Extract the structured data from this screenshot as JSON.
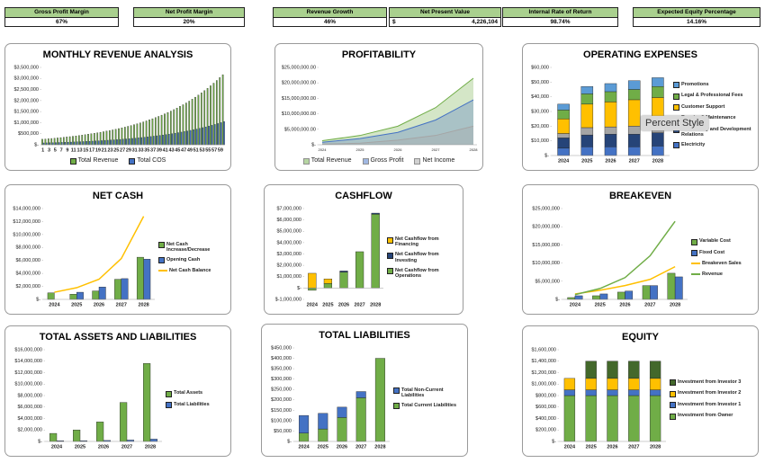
{
  "tooltip": "Percent Style",
  "kpis": [
    {
      "label": "Gross Profit Margin",
      "value": "67%"
    },
    {
      "label": "Net Profit Margin",
      "value": "20%"
    },
    {
      "label": "Revenue Growth",
      "value": "46%"
    },
    {
      "label": "Net Present Value",
      "currency": "$",
      "value": "4,226,104"
    },
    {
      "label": "Internal Rate of Return",
      "value": "98.74%"
    },
    {
      "label": "Expected Equity Percentage",
      "value": "14.16%"
    }
  ],
  "chart_data": [
    {
      "type": "bar",
      "title": "MONTHLY REVENUE ANALYSIS",
      "legend": "bottom",
      "categories": [
        1,
        null,
        3,
        null,
        5,
        null,
        7,
        null,
        9,
        null,
        11,
        null,
        13,
        null,
        15,
        null,
        17,
        null,
        19,
        null,
        21,
        null,
        23,
        null,
        25,
        null,
        27,
        null,
        29,
        null,
        31,
        null,
        33,
        null,
        35,
        null,
        37,
        null,
        39,
        null,
        41,
        null,
        43,
        null,
        45,
        null,
        47,
        null,
        49,
        null,
        51,
        null,
        53,
        null,
        55,
        null,
        57,
        null,
        59,
        null
      ],
      "series": [
        {
          "name": "Total Revenue",
          "color": "#70ad47",
          "values": [
            250000,
            261000,
            272000,
            284000,
            297000,
            310000,
            324000,
            338000,
            353000,
            368000,
            384000,
            401000,
            419000,
            437000,
            457000,
            477000,
            498000,
            520000,
            542000,
            566000,
            591000,
            617000,
            644000,
            673000,
            702000,
            733000,
            766000,
            799000,
            835000,
            871000,
            910000,
            950000,
            991000,
            1035000,
            1081000,
            1128000,
            1178000,
            1230000,
            1284000,
            1340000,
            1399000,
            1461000,
            1525000,
            1592000,
            1663000,
            1736000,
            1812000,
            1892000,
            1975000,
            2062000,
            2153000,
            2248000,
            2347000,
            2450000,
            2558000,
            2670000,
            2788000,
            2911000,
            3039000,
            3172000
          ]
        },
        {
          "name": "Total COS",
          "color": "#4472c4",
          "values": [
            83000,
            86000,
            90000,
            94000,
            98000,
            102000,
            107000,
            112000,
            116000,
            121000,
            127000,
            132000,
            138000,
            144000,
            151000,
            157000,
            164000,
            172000,
            179000,
            187000,
            195000,
            204000,
            213000,
            222000,
            232000,
            242000,
            253000,
            264000,
            276000,
            288000,
            300000,
            314000,
            327000,
            342000,
            357000,
            372000,
            389000,
            406000,
            424000,
            442000,
            462000,
            482000,
            503000,
            525000,
            548000,
            573000,
            598000,
            624000,
            652000,
            680000,
            710000,
            742000,
            775000,
            809000,
            844000,
            881000,
            920000,
            961000,
            1003000,
            1047000
          ]
        }
      ],
      "ylim": [
        0,
        3500000
      ],
      "yticks": [
        {
          "value": 0,
          "label": "$-"
        },
        {
          "value": 500000,
          "label": "$500,000"
        },
        {
          "value": 1000000,
          "label": "$1,000,000"
        },
        {
          "value": 1500000,
          "label": "$1,500,000"
        },
        {
          "value": 2000000,
          "label": "$2,000,000"
        },
        {
          "value": 2500000,
          "label": "$2,500,000"
        },
        {
          "value": 3000000,
          "label": "$3,000,000"
        },
        {
          "value": 3500000,
          "label": "$3,500,000"
        }
      ]
    },
    {
      "type": "area",
      "title": "PROFITABILITY",
      "legend": "bottom",
      "categories": [
        "2024",
        "2025",
        "2026",
        "2027",
        "2028"
      ],
      "series": [
        {
          "name": "Total Revenue",
          "color": "#70ad47",
          "values": [
            1300000,
            3000000,
            6000000,
            12000000,
            21500000
          ]
        },
        {
          "name": "Gross Profit",
          "color": "#4472c4",
          "values": [
            800000,
            2000000,
            4000000,
            8000000,
            14500000
          ]
        },
        {
          "name": "Net Income",
          "color": "#a5a5a5",
          "values": [
            200000,
            500000,
            1500000,
            3000000,
            6000000
          ]
        }
      ],
      "ylim": [
        0,
        25000000
      ],
      "yticks": [
        {
          "value": 0,
          "label": "$-"
        },
        {
          "value": 5000000,
          "label": "$5,000,000.00"
        },
        {
          "value": 10000000,
          "label": "$10,000,000.00"
        },
        {
          "value": 15000000,
          "label": "$15,000,000.00"
        },
        {
          "value": 20000000,
          "label": "$20,000,000.00"
        },
        {
          "value": 25000000,
          "label": "$25,000,000.00"
        }
      ]
    },
    {
      "type": "bar",
      "stacked": true,
      "title": "OPERATING EXPENSES",
      "legend": "right",
      "categories": [
        "2024",
        "2025",
        "2026",
        "2027",
        "2028"
      ],
      "series": [
        {
          "name": "Electricity",
          "color": "#4472c4",
          "values": [
            5000,
            6000,
            6000,
            6000,
            6500
          ]
        },
        {
          "name": "Community and Development Relations",
          "color": "#264478",
          "values": [
            7000,
            8000,
            8500,
            8500,
            9000
          ]
        },
        {
          "name": "Repairs & Maintenance",
          "color": "#a5a5a5",
          "values": [
            3000,
            5000,
            5000,
            5500,
            5500
          ]
        },
        {
          "name": "Customer Support",
          "color": "#ffc000",
          "values": [
            10000,
            16000,
            17000,
            18000,
            18500
          ]
        },
        {
          "name": "Legal & Professional Fees",
          "color": "#70ad47",
          "values": [
            6000,
            7000,
            7000,
            7000,
            7500
          ]
        },
        {
          "name": "Promotions",
          "color": "#5b9bd5",
          "values": [
            4000,
            5000,
            5500,
            6000,
            6000
          ]
        }
      ],
      "ylim": [
        0,
        60000
      ],
      "yticks": [
        {
          "value": 0,
          "label": "$-"
        },
        {
          "value": 10000,
          "label": "$10,000"
        },
        {
          "value": 20000,
          "label": "$20,000"
        },
        {
          "value": 30000,
          "label": "$30,000"
        },
        {
          "value": 40000,
          "label": "$40,000"
        },
        {
          "value": 50000,
          "label": "$50,000"
        },
        {
          "value": 60000,
          "label": "$60,000"
        }
      ]
    },
    {
      "type": "bar",
      "title": "NET CASH",
      "legend": "right",
      "categories": [
        "2024",
        "2025",
        "2026",
        "2027",
        "2028"
      ],
      "series": [
        {
          "name": "Net Cash Increase/Decrease",
          "color": "#70ad47",
          "values": [
            1000000,
            800000,
            1300000,
            3100000,
            6500000
          ]
        },
        {
          "name": "Opening Cash",
          "color": "#4472c4",
          "values": [
            0,
            1100000,
            1900000,
            3200000,
            6200000
          ]
        },
        {
          "name": "Net Cash Balance",
          "type": "line",
          "color": "#ffc000",
          "values": [
            1100000,
            1800000,
            3100000,
            6300000,
            12800000
          ]
        }
      ],
      "ylim": [
        0,
        14000000
      ],
      "yticks": [
        {
          "value": 0,
          "label": "$-"
        },
        {
          "value": 2000000,
          "label": "$2,000,000"
        },
        {
          "value": 4000000,
          "label": "$4,000,000"
        },
        {
          "value": 6000000,
          "label": "$6,000,000"
        },
        {
          "value": 8000000,
          "label": "$8,000,000"
        },
        {
          "value": 10000000,
          "label": "$10,000,000"
        },
        {
          "value": 12000000,
          "label": "$12,000,000"
        },
        {
          "value": 14000000,
          "label": "$14,000,000"
        }
      ]
    },
    {
      "type": "bar",
      "stacked": true,
      "title": "CASHFLOW",
      "legend": "right",
      "categories": [
        "2024",
        "2025",
        "2026",
        "2027",
        "2028"
      ],
      "series": [
        {
          "name": "Net Cashflow from Operations",
          "color": "#70ad47",
          "values": [
            -200000,
            400000,
            1400000,
            3200000,
            6500000
          ]
        },
        {
          "name": "Net Cashflow from Investing",
          "color": "#264478",
          "values": [
            0,
            0,
            100000,
            0,
            100000
          ]
        },
        {
          "name": "Net Cashflow from Financing",
          "color": "#ffc000",
          "values": [
            1300000,
            400000,
            0,
            0,
            0
          ]
        }
      ],
      "ylim": [
        -1000000,
        7000000
      ],
      "yticks": [
        {
          "value": -1000000,
          "label": "$-1,000,000"
        },
        {
          "value": 0,
          "label": "$-"
        },
        {
          "value": 1000000,
          "label": "$1,000,000"
        },
        {
          "value": 2000000,
          "label": "$2,000,000"
        },
        {
          "value": 3000000,
          "label": "$3,000,000"
        },
        {
          "value": 4000000,
          "label": "$4,000,000"
        },
        {
          "value": 5000000,
          "label": "$5,000,000"
        },
        {
          "value": 6000000,
          "label": "$6,000,000"
        },
        {
          "value": 7000000,
          "label": "$7,000,000"
        }
      ]
    },
    {
      "type": "bar",
      "title": "BREAKEVEN",
      "legend": "right",
      "categories": [
        "2024",
        "2025",
        "2026",
        "2027",
        "2028"
      ],
      "series": [
        {
          "name": "Variable Cost",
          "color": "#70ad47",
          "values": [
            500000,
            1000000,
            2000000,
            3800000,
            7200000
          ]
        },
        {
          "name": "Fixed Cost",
          "color": "#4472c4",
          "values": [
            1000000,
            1500000,
            2300000,
            3800000,
            6200000
          ]
        },
        {
          "name": "Breakeven Sales",
          "type": "line",
          "color": "#ffc000",
          "values": [
            1500000,
            2500000,
            3800000,
            5500000,
            9000000
          ]
        },
        {
          "name": "Revenue",
          "type": "line",
          "color": "#70ad47",
          "values": [
            1300000,
            3000000,
            6000000,
            12000000,
            21500000
          ]
        }
      ],
      "ylim": [
        0,
        25000000
      ],
      "yticks": [
        {
          "value": 0,
          "label": "$-"
        },
        {
          "value": 5000000,
          "label": "$5,000,000"
        },
        {
          "value": 10000000,
          "label": "$10,000,000"
        },
        {
          "value": 15000000,
          "label": "$15,000,000"
        },
        {
          "value": 20000000,
          "label": "$20,000,000"
        },
        {
          "value": 25000000,
          "label": "$25,000,000"
        }
      ]
    },
    {
      "type": "bar",
      "title": "TOTAL ASSETS AND LIABILITIES",
      "legend": "right",
      "categories": [
        "2024",
        "2025",
        "2026",
        "2027",
        "2028"
      ],
      "series": [
        {
          "name": "Total Assets",
          "color": "#70ad47",
          "values": [
            1400000,
            2000000,
            3400000,
            6800000,
            13600000
          ]
        },
        {
          "name": "Total Liabilities",
          "color": "#4472c4",
          "values": [
            120000,
            130000,
            170000,
            240000,
            400000
          ]
        }
      ],
      "ylim": [
        0,
        16000000
      ],
      "yticks": [
        {
          "value": 0,
          "label": "$-"
        },
        {
          "value": 2000000,
          "label": "$2,000,000"
        },
        {
          "value": 4000000,
          "label": "$4,000,000"
        },
        {
          "value": 6000000,
          "label": "$6,000,000"
        },
        {
          "value": 8000000,
          "label": "$8,000,000"
        },
        {
          "value": 10000000,
          "label": "$10,000,000"
        },
        {
          "value": 12000000,
          "label": "$12,000,000"
        },
        {
          "value": 14000000,
          "label": "$14,000,000"
        },
        {
          "value": 16000000,
          "label": "$16,000,000"
        }
      ]
    },
    {
      "type": "bar",
      "stacked": true,
      "title": "TOTAL LIABILITIES",
      "legend": "right",
      "categories": [
        "2024",
        "2025",
        "2026",
        "2027",
        "2028"
      ],
      "series": [
        {
          "name": "Total Current Liabilities",
          "color": "#70ad47",
          "values": [
            40000,
            60000,
            115000,
            210000,
            400000
          ]
        },
        {
          "name": "Total Non-Current Liabilities",
          "color": "#4472c4",
          "values": [
            85000,
            75000,
            50000,
            30000,
            0
          ]
        }
      ],
      "ylim": [
        0,
        450000
      ],
      "yticks": [
        {
          "value": 0,
          "label": "$-"
        },
        {
          "value": 50000,
          "label": "$50,000"
        },
        {
          "value": 100000,
          "label": "$100,000"
        },
        {
          "value": 150000,
          "label": "$150,000"
        },
        {
          "value": 200000,
          "label": "$200,000"
        },
        {
          "value": 250000,
          "label": "$250,000"
        },
        {
          "value": 300000,
          "label": "$300,000"
        },
        {
          "value": 350000,
          "label": "$350,000"
        },
        {
          "value": 400000,
          "label": "$400,000"
        },
        {
          "value": 450000,
          "label": "$450,000"
        }
      ]
    },
    {
      "type": "bar",
      "stacked": true,
      "title": "EQUITY",
      "legend": "right",
      "categories": [
        "2024",
        "2025",
        "2026",
        "2027",
        "2028"
      ],
      "series": [
        {
          "name": "Investment from Owner",
          "color": "#70ad47",
          "values": [
            800000,
            800000,
            800000,
            800000,
            800000
          ]
        },
        {
          "name": "Investment from Investor 1",
          "color": "#4472c4",
          "values": [
            100000,
            100000,
            100000,
            100000,
            100000
          ]
        },
        {
          "name": "Investment from Investor 2",
          "color": "#ffc000",
          "values": [
            200000,
            200000,
            200000,
            200000,
            200000
          ]
        },
        {
          "name": "Investment from Investor 3",
          "color": "#43682b",
          "values": [
            0,
            300000,
            300000,
            300000,
            300000
          ]
        }
      ],
      "ylim": [
        0,
        1600000
      ],
      "yticks": [
        {
          "value": 0,
          "label": "$-"
        },
        {
          "value": 200000,
          "label": "$200,000"
        },
        {
          "value": 400000,
          "label": "$400,000"
        },
        {
          "value": 600000,
          "label": "$600,000"
        },
        {
          "value": 800000,
          "label": "$800,000"
        },
        {
          "value": 1000000,
          "label": "$1,000,000"
        },
        {
          "value": 1200000,
          "label": "$1,200,000"
        },
        {
          "value": 1400000,
          "label": "$1,400,000"
        },
        {
          "value": 1600000,
          "label": "$1,600,000"
        }
      ]
    }
  ]
}
